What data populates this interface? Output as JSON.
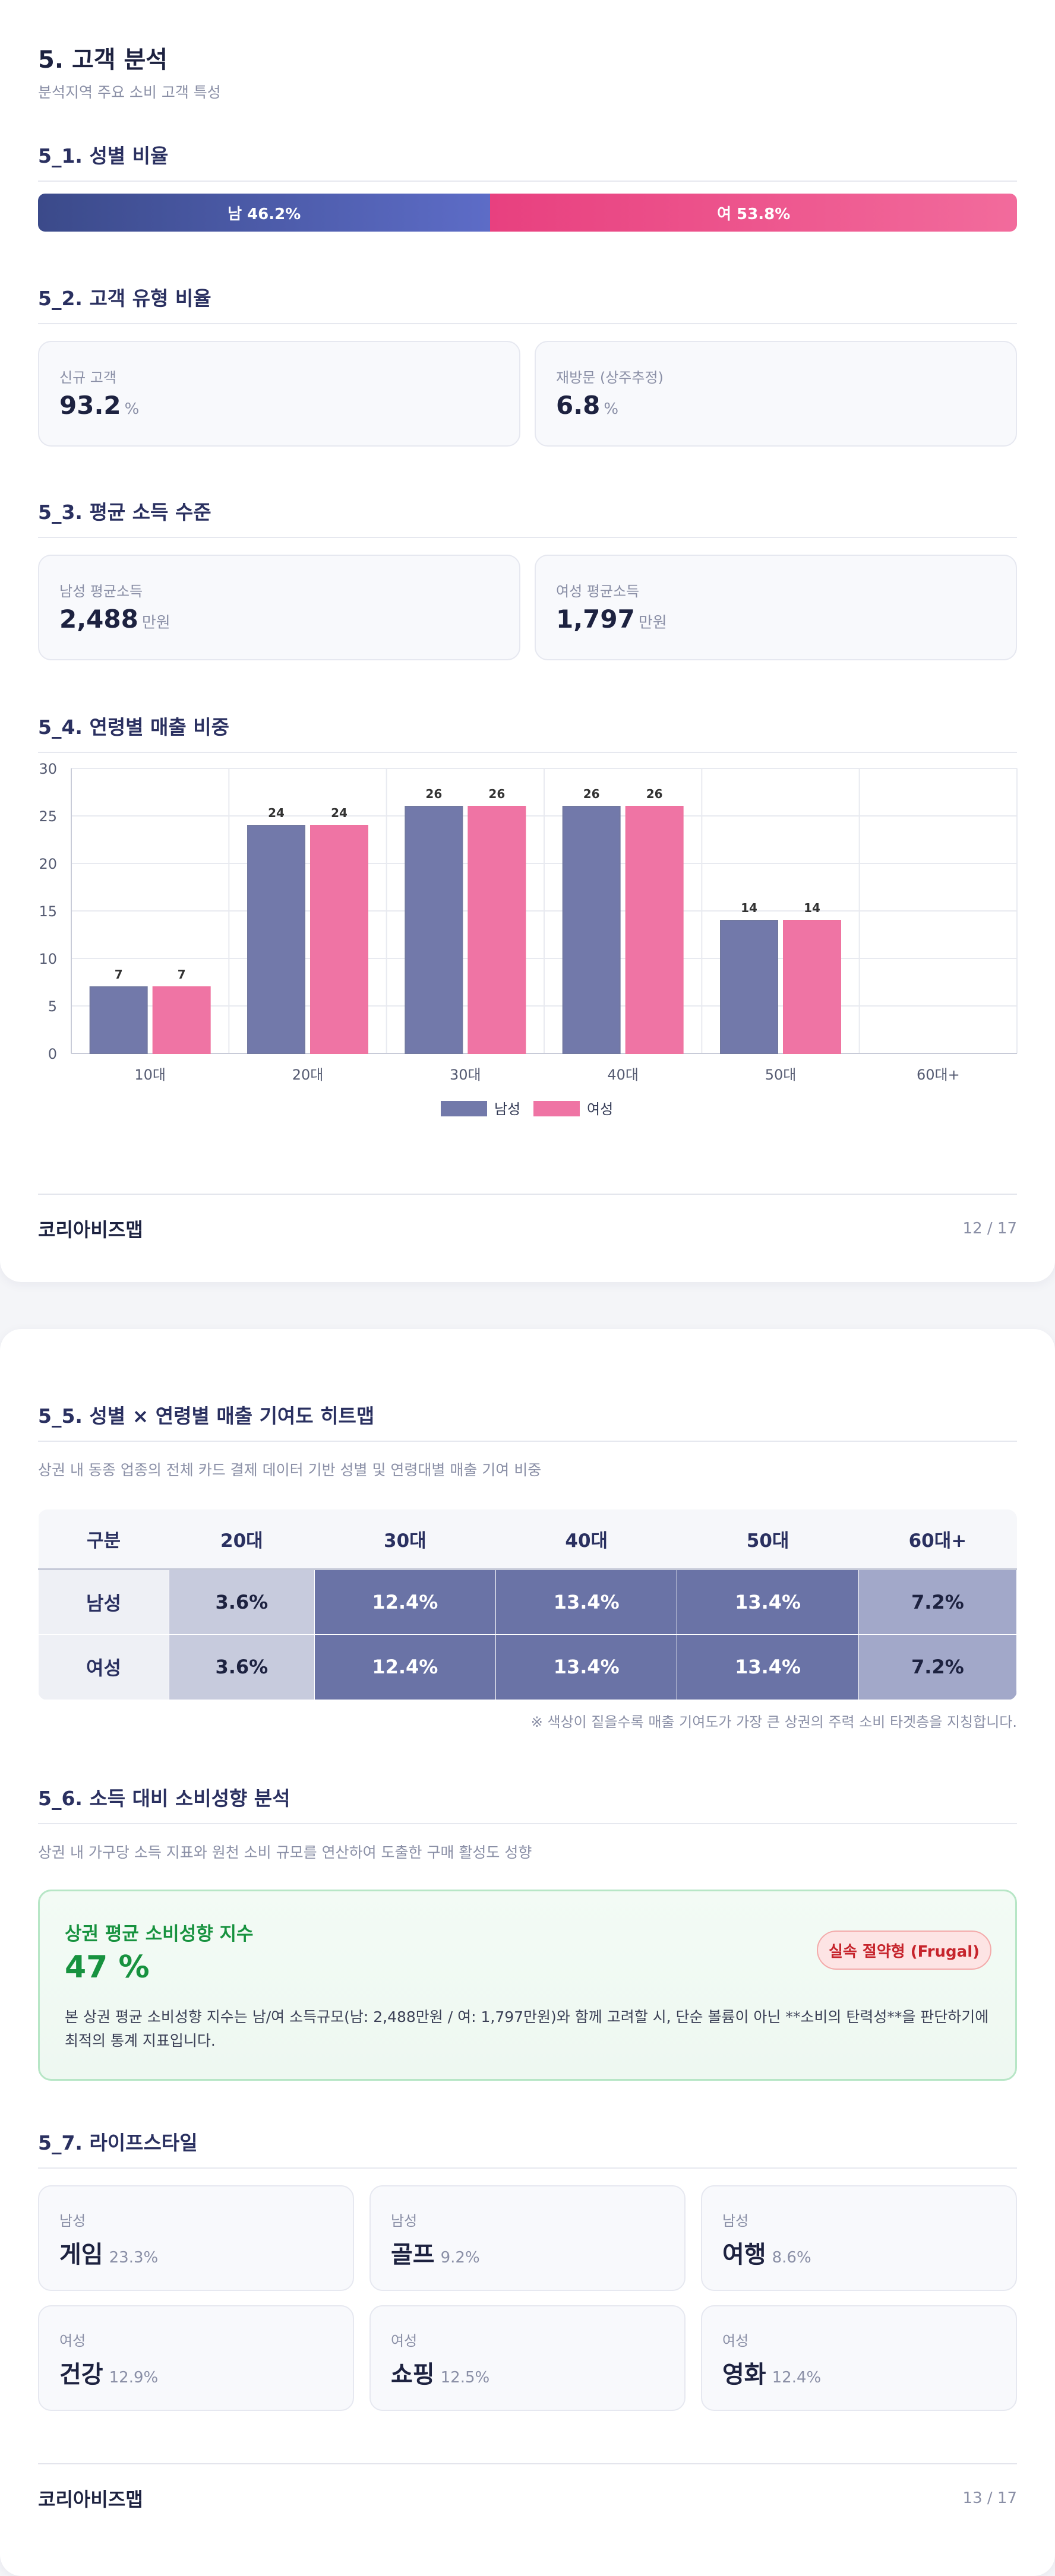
{
  "page1": {
    "title": "5. 고객 분석",
    "subtitle": "분석지역 주요 소비 고객 특성",
    "gender": {
      "heading": "5_1. 성별 비율",
      "male_label": "남 46.2%",
      "female_label": "여 53.8%",
      "male_pct": 46.2,
      "female_pct": 53.8,
      "male_color": "#4a59a8",
      "female_color": "#ec4f88"
    },
    "customer_type": {
      "heading": "5_2. 고객 유형 비율",
      "cards": [
        {
          "label": "신규 고객",
          "value": "93.2",
          "unit": "%"
        },
        {
          "label": "재방문 (상주추정)",
          "value": "6.8",
          "unit": "%"
        }
      ]
    },
    "income": {
      "heading": "5_3. 평균 소득 수준",
      "cards": [
        {
          "label": "남성 평균소득",
          "value": "2,488",
          "unit": "만원"
        },
        {
          "label": "여성 평균소득",
          "value": "1,797",
          "unit": "만원"
        }
      ]
    },
    "age_sales_heading": "5_4. 연령별 매출 비중",
    "footer": {
      "brand": "코리아비즈맵",
      "page": "12 / 17"
    }
  },
  "chart_data": {
    "type": "bar",
    "title": "",
    "xlabel": "",
    "ylabel": "",
    "categories": [
      "10대",
      "20대",
      "30대",
      "40대",
      "50대",
      "60대+"
    ],
    "series": [
      {
        "name": "남성",
        "values": [
          7,
          24,
          26,
          26,
          14,
          0
        ],
        "color": "#7279aa"
      },
      {
        "name": "여성",
        "values": [
          7,
          24,
          26,
          26,
          14,
          0
        ],
        "color": "#ef74a4"
      }
    ],
    "ylim": [
      0,
      30
    ],
    "yticks": [
      0,
      5,
      10,
      15,
      20,
      25,
      30
    ],
    "grid": true,
    "legend": "bottom"
  },
  "page2": {
    "heatmap": {
      "heading": "5_5. 성별 × 연령별 매출 기여도 히트맵",
      "desc": "상권 내 동종 업종의 전체 카드 결제 데이터 기반 성별 및 연령대별 매출 기여 비중",
      "columns": [
        "구분",
        "20대",
        "30대",
        "40대",
        "50대",
        "60대+"
      ],
      "rows": [
        {
          "label": "남성",
          "values": [
            "3.6%",
            "12.4%",
            "13.4%",
            "13.4%",
            "7.2%"
          ]
        },
        {
          "label": "여성",
          "values": [
            "3.6%",
            "12.4%",
            "13.4%",
            "13.4%",
            "7.2%"
          ]
        }
      ],
      "levels": [
        1,
        3,
        3,
        3,
        2
      ],
      "note": "※ 색상이 짙을수록 매출 기여도가 가장 큰 상권의 주력 소비 타겟층을 지칭합니다."
    },
    "propensity": {
      "heading": "5_6. 소득 대비 소비성향 분석",
      "desc": "상권 내 가구당 소득 지표와 원천 소비 규모를 연산하여 도출한 구매 활성도 성향",
      "card_title": "상권 평균 소비성향 지수",
      "value": "47 %",
      "badge": "실속 절약형 (Frugal)",
      "body": "본 상권 평균 소비성향 지수는 남/여 소득규모(남: 2,488만원 / 여: 1,797만원)와 함께 고려할 시, 단순 볼륨이 아닌 **소비의 탄력성**을 판단하기에 최적의 통계 지표입니다."
    },
    "lifestyle": {
      "heading": "5_7. 라이프스타일",
      "items": [
        {
          "gender": "남성",
          "name": "게임",
          "pct": "23.3%"
        },
        {
          "gender": "남성",
          "name": "골프",
          "pct": "9.2%"
        },
        {
          "gender": "남성",
          "name": "여행",
          "pct": "8.6%"
        },
        {
          "gender": "여성",
          "name": "건강",
          "pct": "12.9%"
        },
        {
          "gender": "여성",
          "name": "쇼핑",
          "pct": "12.5%"
        },
        {
          "gender": "여성",
          "name": "영화",
          "pct": "12.4%"
        }
      ]
    },
    "footer": {
      "brand": "코리아비즈맵",
      "page": "13 / 17"
    }
  }
}
